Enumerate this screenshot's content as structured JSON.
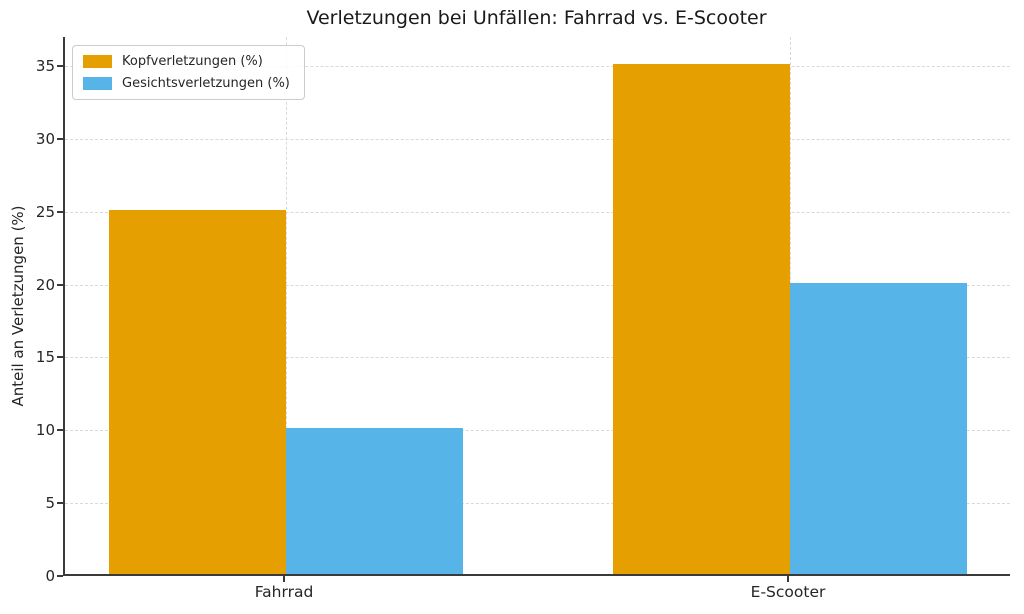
{
  "chart_data": {
    "type": "bar",
    "title": "Verletzungen bei Unfällen: Fahrrad vs. E-Scooter",
    "categories": [
      "Fahrrad",
      "E-Scooter"
    ],
    "series": [
      {
        "name": "Kopfverletzungen (%)",
        "values": [
          25,
          35
        ],
        "color": "#E69F00"
      },
      {
        "name": "Gesichtsverletzungen (%)",
        "values": [
          10,
          20
        ],
        "color": "#56B4E9"
      }
    ],
    "xlabel": "",
    "ylabel": "Anteil an Verletzungen (%)",
    "ylim": [
      0,
      37
    ],
    "yticks": [
      0,
      5,
      10,
      15,
      20,
      25,
      30,
      35
    ],
    "grid": true,
    "grid_style": "dashed",
    "legend_position": "upper left",
    "background": "#ffffff"
  }
}
